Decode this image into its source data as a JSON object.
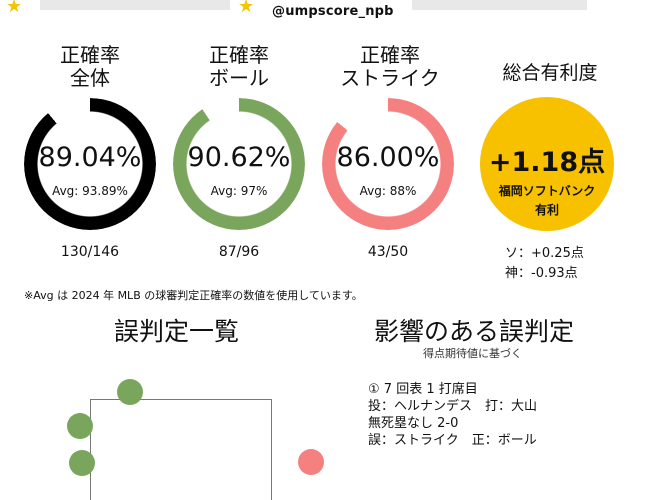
{
  "header": {
    "handle": "@umpscore_npb",
    "star_icon": "★"
  },
  "metrics": [
    {
      "title_line1": "正確率",
      "title_line2": "全体",
      "value": "89.04%",
      "avg": "Avg: 93.89%",
      "fraction": "130/146",
      "color": "#000000",
      "fill": 0.8904
    },
    {
      "title_line1": "正確率",
      "title_line2": "ボール",
      "value": "90.62%",
      "avg": "Avg: 97%",
      "fraction": "87/96",
      "color": "#7aa55c",
      "fill": 0.9062
    },
    {
      "title_line1": "正確率",
      "title_line2": "ストライク",
      "value": "86.00%",
      "avg": "Avg: 88%",
      "fraction": "43/50",
      "color": "#f4817f",
      "fill": 0.86
    }
  ],
  "overall": {
    "title": "総合有利度",
    "value": "+1.18点",
    "team_line1": "福岡ソフトバンク",
    "team_line2": "有利",
    "breakdown": [
      "ソ：+0.25点",
      "神：-0.93点"
    ],
    "color": "#f8c100"
  },
  "note": "※Avg は 2024 年 MLB の球審判定正確率の数値を使用しています。",
  "sections": {
    "miscall_list_title": "誤判定一覧",
    "impact_title": "影響のある誤判定",
    "impact_subtitle": "得点期待値に基づく"
  },
  "impact_detail": {
    "line1": "① 7 回表 1 打席目",
    "line2": "投：ヘルナンデス　打：大山",
    "line3": "無死塁なし 2-0",
    "line4": "誤：ストライク　正：ボール"
  },
  "pitch_dots": [
    {
      "type": "ball",
      "color": "#7aa55c"
    },
    {
      "type": "ball",
      "color": "#7aa55c"
    },
    {
      "type": "ball",
      "color": "#7aa55c"
    },
    {
      "type": "strike",
      "color": "#f4817f"
    }
  ]
}
